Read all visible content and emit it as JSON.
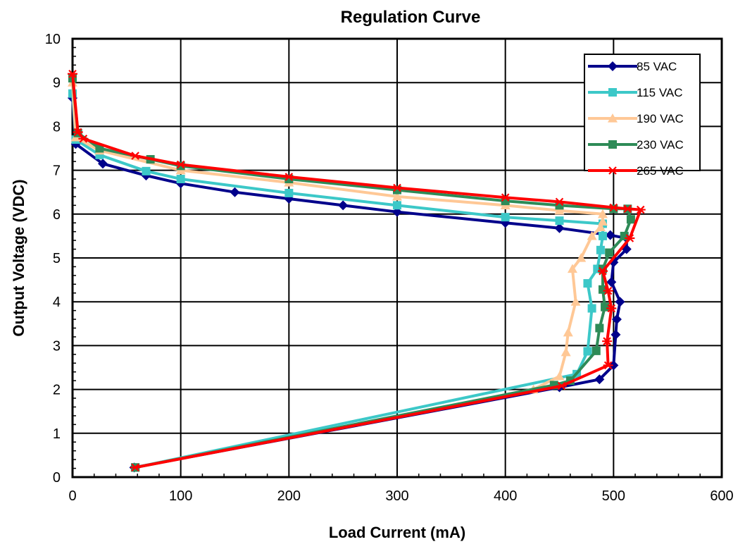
{
  "chart_data": {
    "type": "line",
    "title": "Regulation Curve",
    "xlabel": "Load Current (mA)",
    "ylabel": "Output Voltage (VDC)",
    "xlim": [
      0,
      600
    ],
    "ylim": [
      0,
      10
    ],
    "xticks": [
      0,
      100,
      200,
      300,
      400,
      500,
      600
    ],
    "yticks": [
      0,
      1,
      2,
      3,
      4,
      5,
      6,
      7,
      8,
      9,
      10
    ],
    "xtick_labels": [
      "0",
      "100",
      "200",
      "300",
      "400",
      "500",
      "600"
    ],
    "ytick_labels": [
      "0",
      "1",
      "2",
      "3",
      "4",
      "5",
      "6",
      "7",
      "8",
      "9",
      "10"
    ],
    "grid": true,
    "legend_position": "top-right",
    "series": [
      {
        "name": "85 VAC",
        "color": "#00008B",
        "marker": "diamond",
        "points": [
          [
            0,
            8.65
          ],
          [
            3,
            7.6
          ],
          [
            28,
            7.15
          ],
          [
            68,
            6.88
          ],
          [
            100,
            6.7
          ],
          [
            150,
            6.5
          ],
          [
            200,
            6.35
          ],
          [
            250,
            6.2
          ],
          [
            300,
            6.05
          ],
          [
            400,
            5.8
          ],
          [
            450,
            5.68
          ],
          [
            497,
            5.52
          ],
          [
            512,
            5.45
          ],
          [
            512,
            5.2
          ],
          [
            500,
            4.9
          ],
          [
            498,
            4.45
          ],
          [
            506,
            4.0
          ],
          [
            503,
            3.6
          ],
          [
            502,
            3.25
          ],
          [
            500,
            2.55
          ],
          [
            487,
            2.23
          ],
          [
            450,
            2.05
          ],
          [
            57,
            0.22
          ]
        ]
      },
      {
        "name": "115 VAC",
        "color": "#3CC8C8",
        "marker": "square",
        "points": [
          [
            0,
            8.75
          ],
          [
            3,
            7.7
          ],
          [
            25,
            7.35
          ],
          [
            68,
            6.98
          ],
          [
            100,
            6.8
          ],
          [
            200,
            6.48
          ],
          [
            300,
            6.2
          ],
          [
            400,
            5.93
          ],
          [
            450,
            5.85
          ],
          [
            490,
            5.78
          ],
          [
            490,
            5.5
          ],
          [
            488,
            5.18
          ],
          [
            485,
            4.75
          ],
          [
            476,
            4.42
          ],
          [
            480,
            3.85
          ],
          [
            476,
            2.87
          ],
          [
            466,
            2.35
          ],
          [
            58,
            0.22
          ]
        ]
      },
      {
        "name": "190 VAC",
        "color": "#FFC896",
        "marker": "triangle",
        "points": [
          [
            0,
            9.0
          ],
          [
            3,
            7.75
          ],
          [
            25,
            7.45
          ],
          [
            100,
            7.0
          ],
          [
            200,
            6.72
          ],
          [
            300,
            6.4
          ],
          [
            400,
            6.2
          ],
          [
            450,
            6.08
          ],
          [
            490,
            6.0
          ],
          [
            490,
            5.83
          ],
          [
            488,
            5.7
          ],
          [
            480,
            5.5
          ],
          [
            470,
            5.0
          ],
          [
            462,
            4.75
          ],
          [
            465,
            4.0
          ],
          [
            458,
            3.3
          ],
          [
            456,
            2.85
          ],
          [
            450,
            2.3
          ],
          [
            426,
            2.0
          ],
          [
            58,
            0.22
          ]
        ]
      },
      {
        "name": "230 VAC",
        "color": "#2E8B57",
        "marker": "square",
        "points": [
          [
            0,
            9.1
          ],
          [
            5,
            7.85
          ],
          [
            25,
            7.5
          ],
          [
            72,
            7.25
          ],
          [
            100,
            7.1
          ],
          [
            200,
            6.8
          ],
          [
            300,
            6.55
          ],
          [
            400,
            6.3
          ],
          [
            450,
            6.2
          ],
          [
            500,
            6.12
          ],
          [
            513,
            6.12
          ],
          [
            516,
            5.88
          ],
          [
            510,
            5.5
          ],
          [
            496,
            5.12
          ],
          [
            490,
            4.75
          ],
          [
            490,
            4.28
          ],
          [
            492,
            3.88
          ],
          [
            487,
            3.4
          ],
          [
            484,
            2.88
          ],
          [
            460,
            2.2
          ],
          [
            445,
            2.1
          ],
          [
            58,
            0.22
          ]
        ]
      },
      {
        "name": "265 VAC",
        "color": "#FF0000",
        "marker": "star",
        "points": [
          [
            0,
            9.2
          ],
          [
            5,
            7.87
          ],
          [
            10,
            7.72
          ],
          [
            58,
            7.33
          ],
          [
            100,
            7.13
          ],
          [
            200,
            6.85
          ],
          [
            300,
            6.6
          ],
          [
            400,
            6.38
          ],
          [
            450,
            6.28
          ],
          [
            500,
            6.15
          ],
          [
            513,
            6.12
          ],
          [
            525,
            6.1
          ],
          [
            515,
            5.45
          ],
          [
            490,
            4.7
          ],
          [
            495,
            4.25
          ],
          [
            498,
            3.85
          ],
          [
            494,
            3.1
          ],
          [
            495,
            2.55
          ],
          [
            452,
            2.08
          ],
          [
            58,
            0.22
          ]
        ]
      }
    ]
  }
}
